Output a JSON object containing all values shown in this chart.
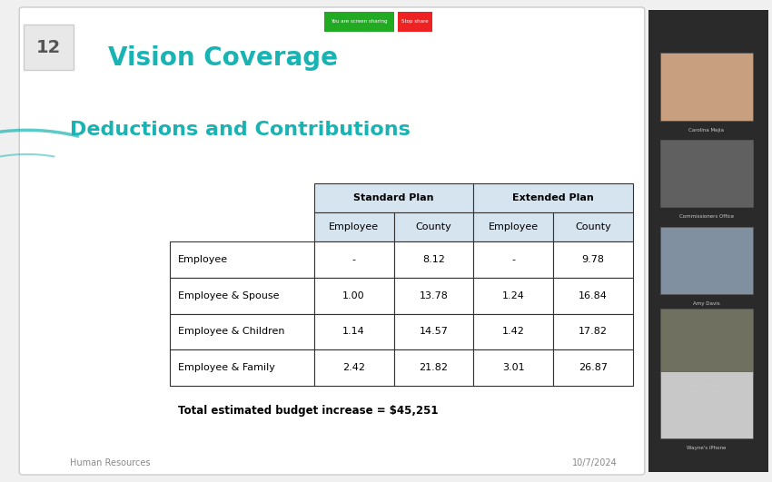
{
  "title": "Vision Coverage",
  "subtitle": "Deductions and Contributions",
  "title_color": "#1ab3b3",
  "subtitle_color": "#1ab3b3",
  "bg_color": "#f0f0f0",
  "slide_bg": "#ffffff",
  "footer_left": "Human Resources",
  "footer_right": "10/7/2024",
  "budget_note": "Total estimated budget increase = $45,251",
  "slide_number": "12",
  "col_headers": [
    "",
    "Standard Plan",
    "",
    "Extended Plan",
    ""
  ],
  "sub_headers": [
    "",
    "Employee",
    "County",
    "Employee",
    "County"
  ],
  "rows": [
    [
      "Employee",
      "-",
      "8.12",
      "-",
      "9.78"
    ],
    [
      "Employee & Spouse",
      "1.00",
      "13.78",
      "1.24",
      "16.84"
    ],
    [
      "Employee & Children",
      "1.14",
      "14.57",
      "1.42",
      "17.82"
    ],
    [
      "Employee & Family",
      "2.42",
      "21.82",
      "3.01",
      "26.87"
    ]
  ],
  "header_bg": "#d6e4f0",
  "header_border": "#333333",
  "row_bg_odd": "#ffffff",
  "row_bg_even": "#ffffff",
  "table_text_color": "#000000",
  "accent_color": "#4a9fb5"
}
